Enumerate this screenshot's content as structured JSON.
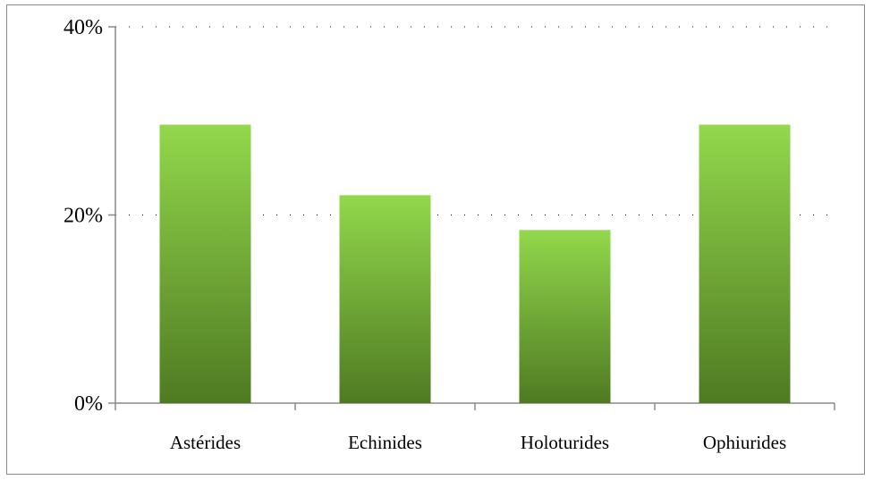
{
  "chart_data": {
    "type": "bar",
    "categories": [
      "Astérides",
      "Echinides",
      "Holoturides",
      "Ophiurides"
    ],
    "values": [
      29.6,
      22.1,
      18.4,
      29.6
    ],
    "value_unit": "%",
    "ylim": [
      0,
      40
    ],
    "yticks": [
      0,
      20,
      40
    ],
    "ytick_labels": [
      "0%",
      "20%",
      "40%"
    ],
    "title": "",
    "xlabel": "",
    "ylabel": "",
    "grid": "dotted horizontal at 20% and 40%",
    "legend": "none",
    "colors": {
      "bar_top": "#92d84c",
      "bar_bottom": "#4f7a22",
      "axis": "#8a8a8a",
      "grid": "#000000"
    }
  }
}
